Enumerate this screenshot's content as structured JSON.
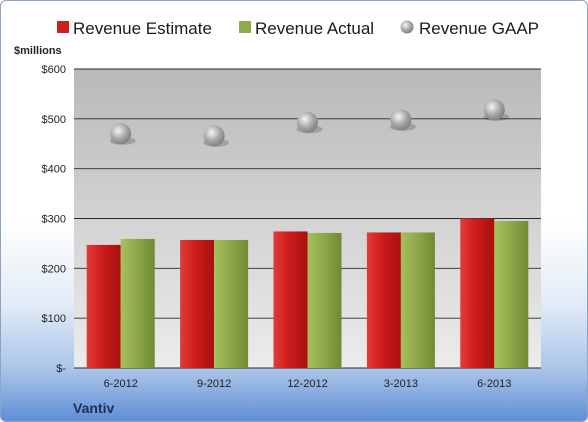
{
  "chart_data": {
    "type": "bar",
    "unit_label": "$millions",
    "company": "Vantiv",
    "categories": [
      "6-2012",
      "9-2012",
      "12-2012",
      "3-2013",
      "6-2013"
    ],
    "series": [
      {
        "name": "Revenue Estimate",
        "type": "bar",
        "color": "#cc1f1f",
        "values": [
          247,
          257,
          274,
          272,
          300
        ]
      },
      {
        "name": "Revenue Actual",
        "type": "bar",
        "color": "#8faa4a",
        "values": [
          259,
          257,
          271,
          272,
          295
        ]
      },
      {
        "name": "Revenue GAAP",
        "type": "scatter",
        "color": "#a0a0a0",
        "values": [
          470,
          466,
          493,
          498,
          518
        ]
      }
    ],
    "y_ticks": [
      "$-",
      "$100",
      "$200",
      "$300",
      "$400",
      "$500",
      "$600"
    ],
    "ylim": [
      0,
      600
    ],
    "grid": true,
    "legend_position": "top"
  }
}
